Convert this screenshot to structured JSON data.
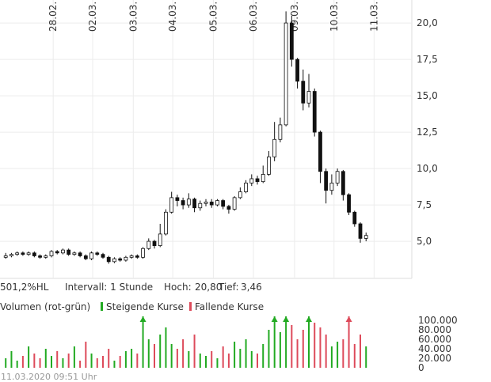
{
  "chart_data": [
    {
      "type": "candlestick",
      "x": [
        1,
        2,
        3,
        4,
        5,
        6,
        7,
        8,
        9,
        10,
        11,
        12,
        13,
        14,
        15,
        16,
        17,
        18,
        19,
        20,
        21,
        22,
        23,
        24,
        25,
        26,
        27,
        28,
        29,
        30,
        31,
        32,
        33,
        34,
        35,
        36,
        37,
        38,
        39,
        40,
        41,
        42,
        43,
        44,
        45,
        46,
        47,
        48,
        49,
        50,
        51,
        52,
        53,
        54,
        55,
        56,
        57,
        58,
        59,
        60,
        61,
        62,
        63,
        64
      ],
      "open": [
        3.9,
        4.0,
        4.1,
        4.2,
        4.1,
        4.2,
        4.0,
        3.9,
        4.0,
        4.3,
        4.2,
        4.4,
        4.1,
        4.2,
        4.0,
        3.8,
        4.2,
        4.1,
        3.9,
        3.6,
        3.8,
        3.7,
        3.9,
        4.0,
        3.9,
        4.5,
        5.0,
        4.7,
        5.5,
        7.0,
        8.0,
        7.8,
        7.5,
        7.9,
        7.3,
        7.6,
        7.7,
        7.5,
        7.8,
        7.4,
        7.2,
        8.0,
        8.4,
        9.0,
        9.3,
        9.1,
        9.6,
        10.8,
        12.0,
        13.0,
        20.0,
        17.5,
        16.0,
        14.5,
        15.3,
        12.5,
        9.8,
        8.5,
        9.0,
        9.8,
        8.2,
        7.0,
        6.2,
        5.2
      ],
      "high": [
        4.2,
        4.2,
        4.3,
        4.3,
        4.3,
        4.3,
        4.1,
        4.1,
        4.4,
        4.4,
        4.5,
        4.5,
        4.3,
        4.3,
        4.1,
        4.3,
        4.3,
        4.2,
        4.0,
        3.9,
        3.9,
        4.0,
        4.1,
        4.1,
        4.6,
        5.2,
        5.1,
        6.2,
        7.2,
        8.4,
        8.2,
        8.0,
        8.3,
        8.0,
        7.8,
        7.9,
        7.9,
        7.9,
        7.9,
        7.5,
        8.1,
        8.7,
        9.2,
        9.6,
        9.5,
        10.2,
        11.2,
        13.2,
        13.5,
        20.8,
        20.5,
        17.6,
        16.8,
        16.5,
        15.5,
        12.6,
        10.0,
        9.6,
        10.0,
        9.9,
        8.3,
        7.1,
        6.3,
        5.6
      ],
      "low": [
        3.8,
        3.9,
        4.0,
        4.0,
        4.0,
        3.9,
        3.8,
        3.8,
        3.9,
        4.1,
        4.1,
        4.0,
        4.0,
        3.9,
        3.7,
        3.7,
        4.0,
        3.8,
        3.46,
        3.5,
        3.6,
        3.6,
        3.8,
        3.8,
        3.8,
        4.4,
        4.5,
        4.6,
        5.4,
        6.9,
        7.4,
        7.2,
        7.3,
        7.0,
        7.1,
        7.4,
        7.3,
        7.4,
        7.2,
        6.9,
        7.1,
        7.9,
        8.3,
        8.8,
        8.9,
        9.0,
        9.5,
        10.5,
        11.8,
        12.9,
        17.0,
        15.5,
        14.0,
        14.2,
        12.2,
        9.0,
        7.6,
        8.2,
        8.8,
        7.8,
        6.8,
        6.0,
        4.9,
        5.0
      ],
      "close": [
        4.0,
        4.1,
        4.2,
        4.1,
        4.2,
        4.0,
        3.9,
        4.0,
        4.3,
        4.2,
        4.4,
        4.1,
        4.2,
        4.0,
        3.8,
        4.2,
        4.1,
        3.9,
        3.6,
        3.8,
        3.7,
        3.9,
        4.0,
        3.9,
        4.5,
        5.0,
        4.7,
        5.5,
        7.0,
        8.0,
        7.8,
        7.5,
        7.9,
        7.3,
        7.6,
        7.7,
        7.5,
        7.8,
        7.4,
        7.2,
        8.0,
        8.4,
        9.0,
        9.3,
        9.1,
        9.6,
        10.8,
        12.0,
        13.0,
        20.0,
        17.5,
        16.0,
        14.5,
        15.3,
        12.5,
        9.8,
        8.5,
        9.0,
        9.8,
        8.2,
        7.0,
        6.2,
        5.2,
        5.4
      ],
      "xlim": [
        0,
        72
      ],
      "xticks": [
        {
          "value": 9.3,
          "label": "28.02."
        },
        {
          "value": 16.2,
          "label": "02.03."
        },
        {
          "value": 23.3,
          "label": "03.03."
        },
        {
          "value": 30.2,
          "label": "04.03."
        },
        {
          "value": 37.3,
          "label": "05.03."
        },
        {
          "value": 44.3,
          "label": "06.03."
        },
        {
          "value": 51.5,
          "label": "09.03."
        },
        {
          "value": 58.4,
          "label": "10.03."
        },
        {
          "value": 65.4,
          "label": "11.03."
        }
      ],
      "ylim": [
        2.45,
        21.58
      ],
      "yticks": [
        {
          "value": 5,
          "label": "5,0"
        },
        {
          "value": 7.5,
          "label": "7,5"
        },
        {
          "value": 10,
          "label": "10,0"
        },
        {
          "value": 12.5,
          "label": "12,5"
        },
        {
          "value": 15,
          "label": "15,0"
        },
        {
          "value": 17.5,
          "label": "17,5"
        },
        {
          "value": 20,
          "label": "20,0"
        }
      ],
      "grid": true
    },
    {
      "type": "volume",
      "title": "Volumen (rot-grün)",
      "legend": [
        {
          "name": "Steigende Kurse",
          "color": "#22aa22"
        },
        {
          "name": "Fallende Kurse",
          "color": "#dd4a5a"
        }
      ],
      "values": [
        20000,
        35000,
        15000,
        25000,
        45000,
        30000,
        20000,
        40000,
        25000,
        35000,
        20000,
        30000,
        45000,
        15000,
        55000,
        30000,
        20000,
        25000,
        40000,
        15000,
        25000,
        35000,
        40000,
        30000,
        120000,
        60000,
        50000,
        70000,
        85000,
        50000,
        40000,
        60000,
        35000,
        70000,
        30000,
        25000,
        35000,
        20000,
        45000,
        30000,
        55000,
        40000,
        60000,
        35000,
        30000,
        50000,
        80000,
        110000,
        75000,
        150000,
        90000,
        60000,
        80000,
        130000,
        95000,
        85000,
        70000,
        45000,
        55000,
        60000,
        115000,
        50000,
        70000,
        45000
      ],
      "ylim": [
        0,
        105000
      ],
      "yticks": [
        0,
        {
          "value": 20000,
          "label": "20.000"
        },
        {
          "value": 40000,
          "label": "40.000"
        },
        {
          "value": 60000,
          "label": "60.000"
        },
        {
          "value": 80000,
          "label": "80.000"
        },
        {
          "value": 100000,
          "label": "100.000"
        }
      ]
    }
  ],
  "info": {
    "range": "501,2%HL",
    "interval": "Intervall: 1 Stunde",
    "high_label": "Hoch:",
    "high": "20,80",
    "low_label": "Tief:",
    "low": "3,46"
  },
  "footer": "11.03.2020 09:51 Uhr"
}
